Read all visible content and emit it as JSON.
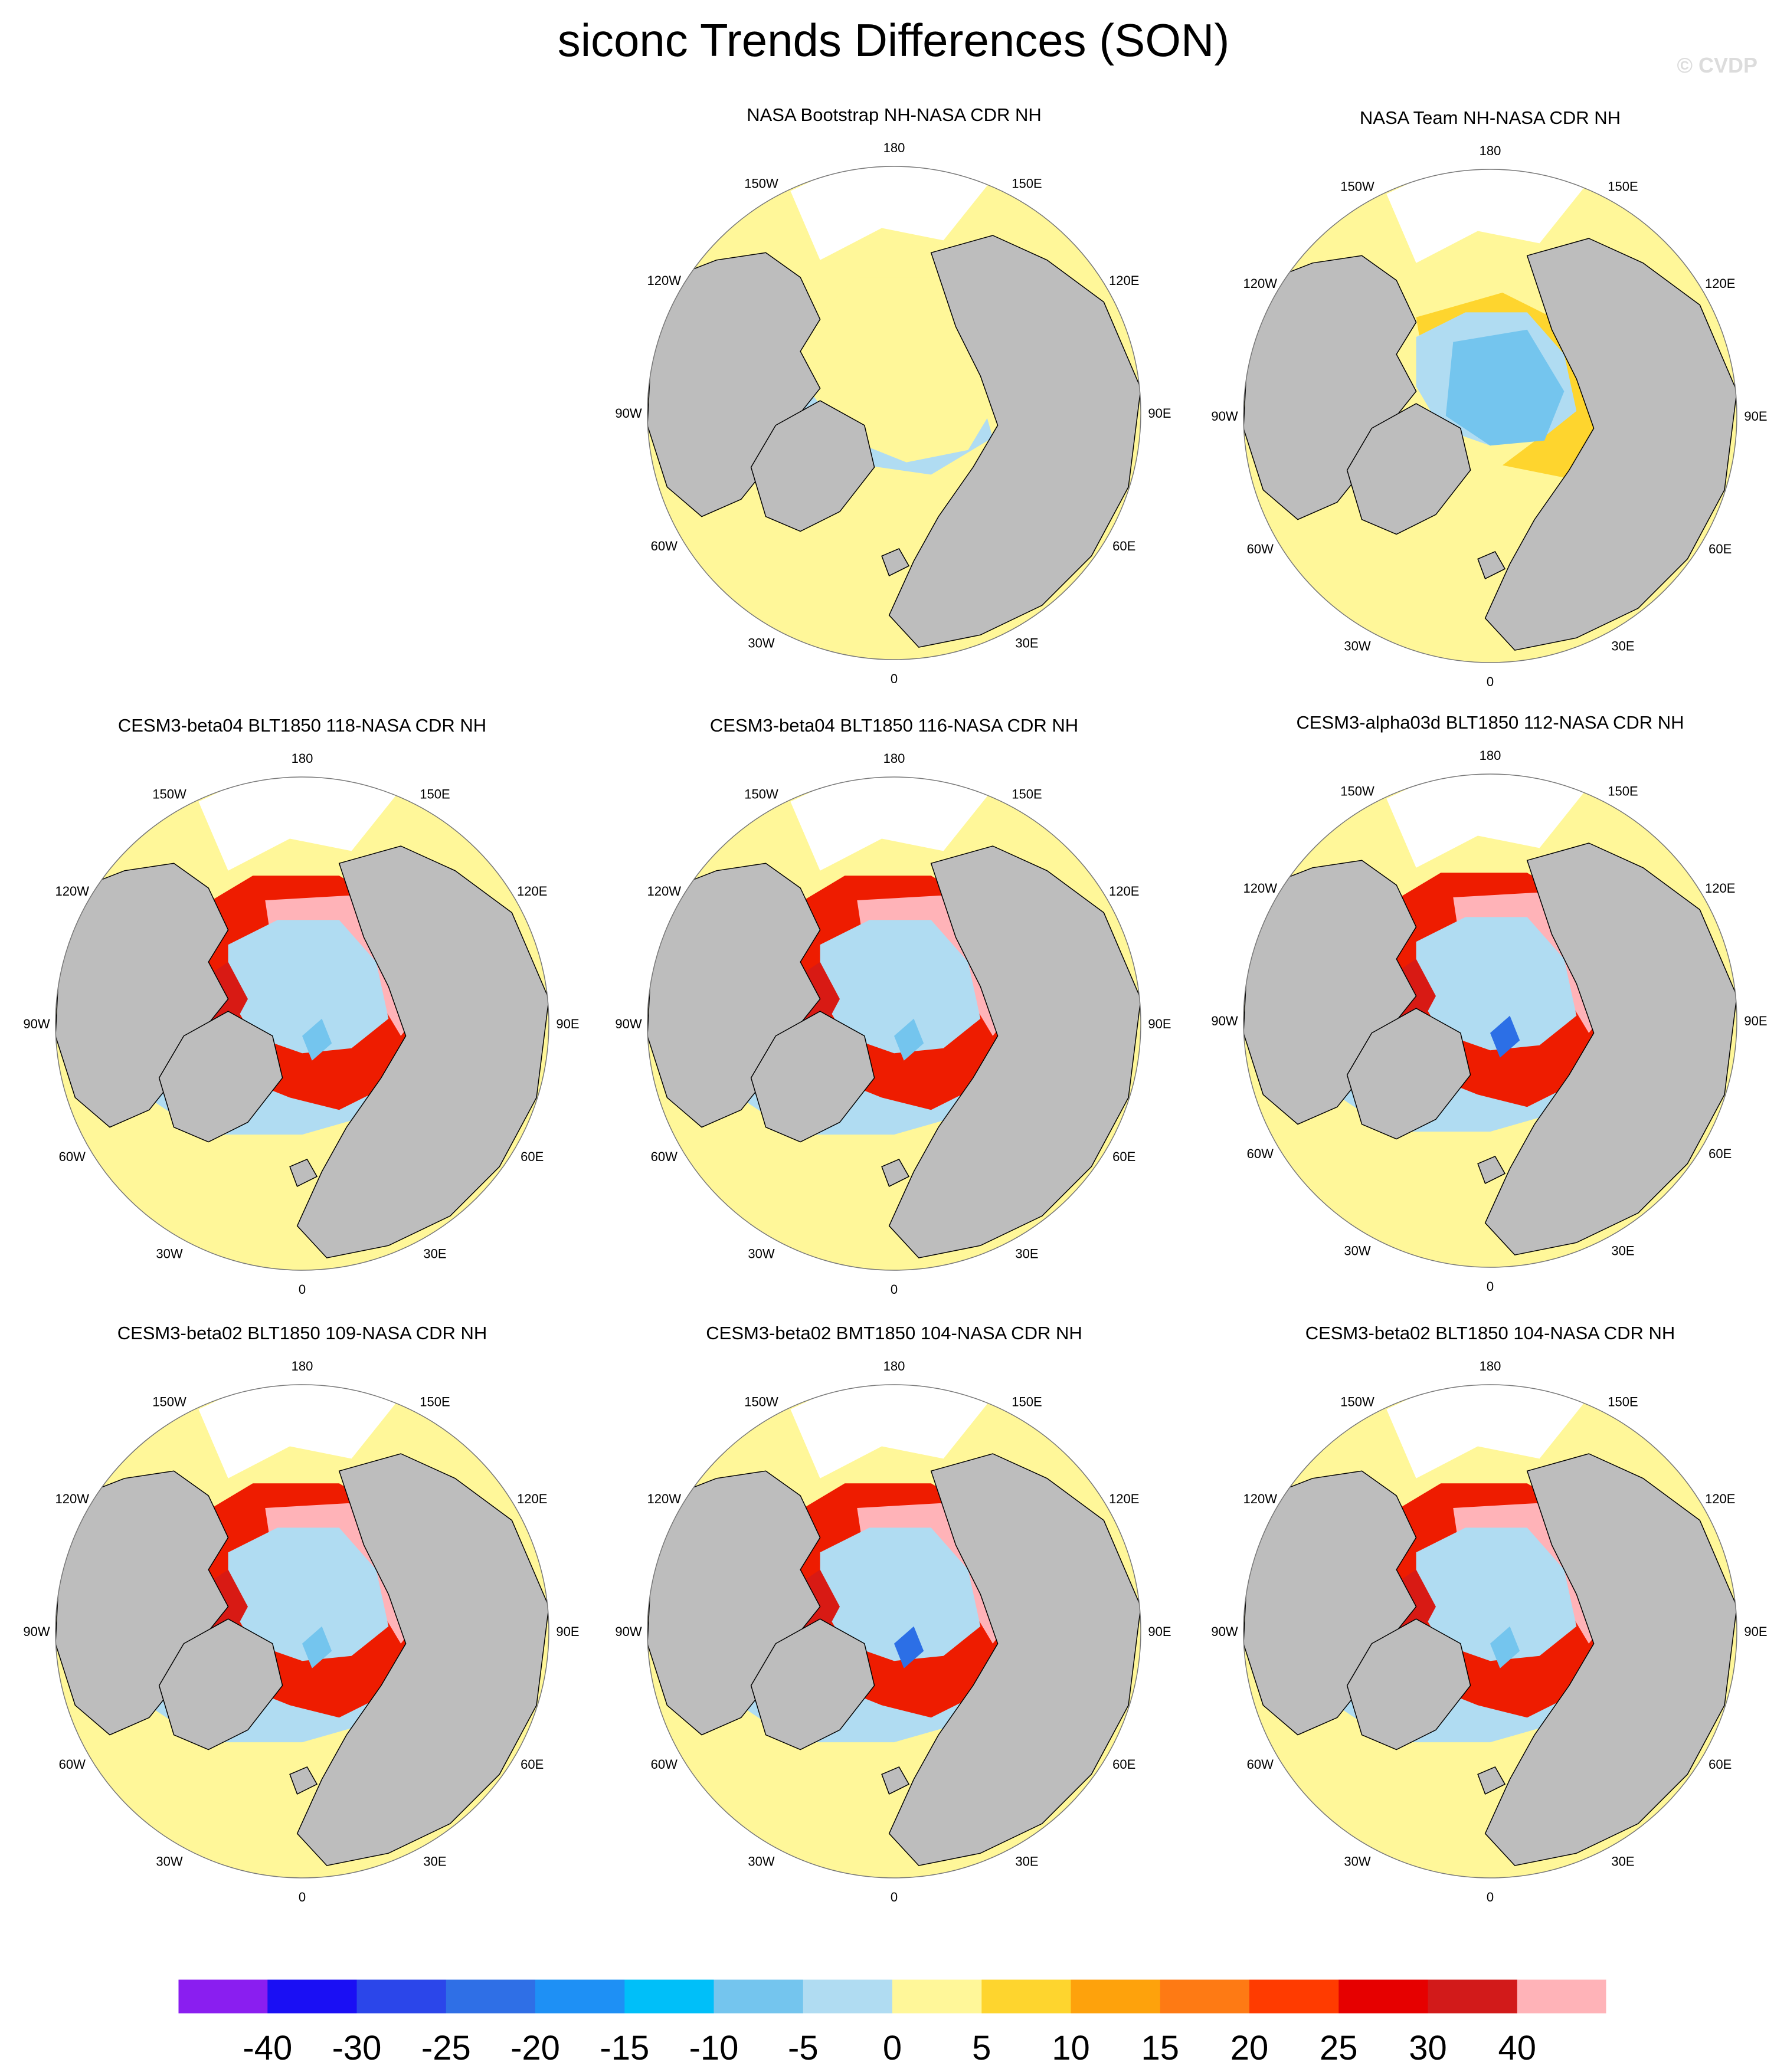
{
  "title": "siconc Trends Differences (SON)",
  "credit": "© CVDP",
  "colors": {
    "land": "#bdbdbd",
    "ocean_missing": "#ffffff",
    "coastline": "#000000",
    "neutral": "#fff799",
    "negative_light": "#b0dcf2",
    "negative_mid": "#74c5ee",
    "negative_strong": "#2c6fe6",
    "positive_light": "#fed52e",
    "positive_mid": "#fe9f1c",
    "positive_strong": "#ee1c00",
    "positive_dark": "#d81a14",
    "positive_max": "#ffb3b8"
  },
  "lon_labels": [
    "180",
    "150E",
    "120E",
    "90E",
    "60E",
    "30E",
    "0",
    "30W",
    "60W",
    "90W",
    "120W",
    "150W"
  ],
  "panels": [
    {
      "title": "NASA Bootstrap NH-NASA CDR NH",
      "pattern": "bootstrap"
    },
    {
      "title": "NASA Team NH-NASA CDR NH",
      "pattern": "team"
    },
    {
      "title": "CESM3-beta04 BLT1850 118-NASA CDR NH",
      "pattern": "model"
    },
    {
      "title": "CESM3-beta04 BLT1850 116-NASA CDR NH",
      "pattern": "model"
    },
    {
      "title": "CESM3-alpha03d BLT1850 112-NASA CDR NH",
      "pattern": "model_blue"
    },
    {
      "title": "CESM3-beta02 BLT1850 109-NASA CDR NH",
      "pattern": "model"
    },
    {
      "title": "CESM3-beta02 BMT1850 104-NASA CDR NH",
      "pattern": "model_blue"
    },
    {
      "title": "CESM3-beta02 BLT1850 104-NASA CDR NH",
      "pattern": "model"
    }
  ],
  "colorbar": {
    "colors": [
      "#8a1ef0",
      "#1a0ff4",
      "#2b46ea",
      "#2f6fe6",
      "#1e90f5",
      "#00bff9",
      "#74c5ee",
      "#b0dcf2",
      "#fff799",
      "#fed52e",
      "#fea20c",
      "#fe7a14",
      "#ff3b00",
      "#e60000",
      "#d21a1a",
      "#ffb3b8"
    ],
    "labels": [
      "-40",
      "-30",
      "-25",
      "-20",
      "-15",
      "-10",
      "-5",
      "0",
      "5",
      "10",
      "15",
      "20",
      "25",
      "30",
      "40"
    ]
  }
}
